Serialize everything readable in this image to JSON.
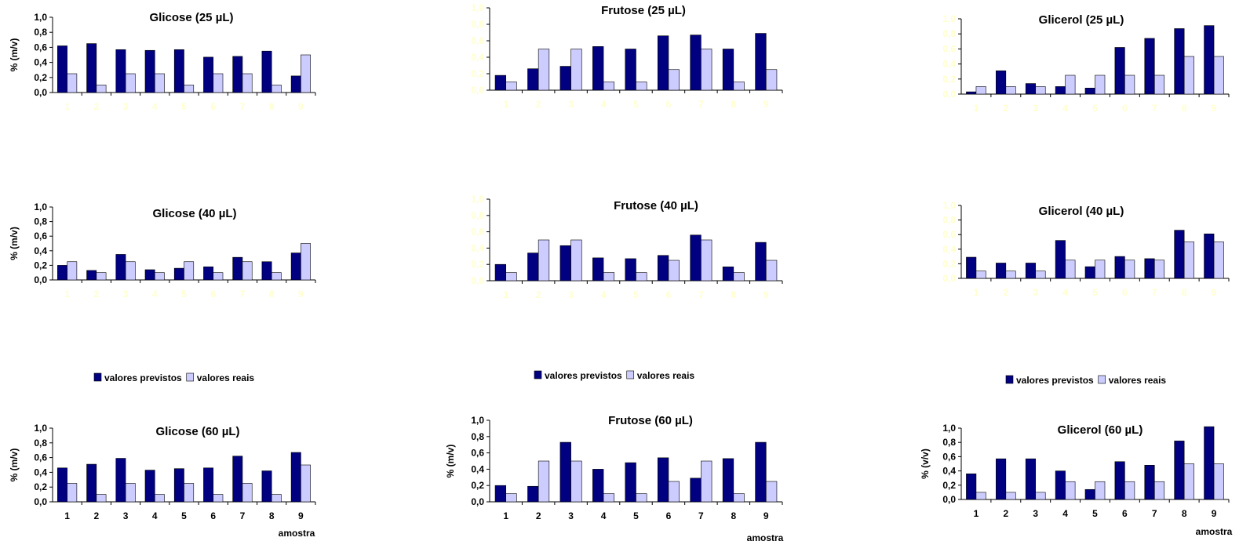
{
  "colors": {
    "previstos": "#000080",
    "reais": "#ccccff",
    "faint_tick": "#ffffcc"
  },
  "legend": {
    "previstos": "valores previstos",
    "reais": "valores reais"
  },
  "chart_data": [
    {
      "id": "glicose-25",
      "type": "bar",
      "title": "Glicose (25 µL)",
      "ylabel": "% (m/v)",
      "xlabel": "",
      "ylim": [
        0,
        1.0
      ],
      "yticks": [
        "0,0",
        "0,2",
        "0,4",
        "0,6",
        "0,8",
        "1,0"
      ],
      "categories": [
        "1",
        "2",
        "3",
        "4",
        "5",
        "6",
        "7",
        "8",
        "9"
      ],
      "series": [
        {
          "name": "valores previstos",
          "values": [
            0.62,
            0.65,
            0.57,
            0.56,
            0.57,
            0.47,
            0.48,
            0.55,
            0.22
          ]
        },
        {
          "name": "valores reais",
          "values": [
            0.25,
            0.1,
            0.25,
            0.25,
            0.1,
            0.25,
            0.25,
            0.1,
            0.5
          ]
        }
      ]
    },
    {
      "id": "frutose-25",
      "type": "bar",
      "title": "Frutose (25 µL)",
      "ylabel": "",
      "xlabel": "",
      "ylim": [
        0,
        1.0
      ],
      "yticks": [
        "0,0",
        "0,2",
        "0,4",
        "0,6",
        "0,8",
        "1,0"
      ],
      "categories": [
        "1",
        "2",
        "3",
        "4",
        "5",
        "6",
        "7",
        "8",
        "9"
      ],
      "series": [
        {
          "name": "valores previstos",
          "values": [
            0.18,
            0.26,
            0.29,
            0.53,
            0.5,
            0.66,
            0.67,
            0.5,
            0.69
          ]
        },
        {
          "name": "valores reais",
          "values": [
            0.1,
            0.5,
            0.5,
            0.1,
            0.1,
            0.25,
            0.5,
            0.1,
            0.25
          ]
        }
      ]
    },
    {
      "id": "glicerol-25",
      "type": "bar",
      "title": "Glicerol (25 µL)",
      "ylabel": "",
      "xlabel": "",
      "ylim": [
        0,
        1.0
      ],
      "yticks": [
        "0,0",
        "0,2",
        "0,4",
        "0,6",
        "0,8",
        "1,0"
      ],
      "categories": [
        "1",
        "2",
        "3",
        "4",
        "5",
        "6",
        "7",
        "8",
        "9"
      ],
      "series": [
        {
          "name": "valores previstos",
          "values": [
            0.03,
            0.31,
            0.14,
            0.1,
            0.08,
            0.62,
            0.74,
            0.87,
            0.91
          ]
        },
        {
          "name": "valores reais",
          "values": [
            0.1,
            0.1,
            0.1,
            0.25,
            0.25,
            0.25,
            0.25,
            0.5,
            0.5
          ]
        }
      ]
    },
    {
      "id": "glicose-40",
      "type": "bar",
      "title": "Glicose (40 µL)",
      "ylabel": "% (m/v)",
      "xlabel": "",
      "ylim": [
        0,
        1.0
      ],
      "yticks": [
        "0,0",
        "0,2",
        "0,4",
        "0,6",
        "0,8",
        "1,0"
      ],
      "categories": [
        "1",
        "2",
        "3",
        "4",
        "5",
        "6",
        "7",
        "8",
        "9"
      ],
      "series": [
        {
          "name": "valores previstos",
          "values": [
            0.2,
            0.13,
            0.35,
            0.14,
            0.16,
            0.18,
            0.31,
            0.25,
            0.37
          ]
        },
        {
          "name": "valores reais",
          "values": [
            0.25,
            0.1,
            0.25,
            0.1,
            0.25,
            0.1,
            0.25,
            0.1,
            0.5
          ]
        }
      ]
    },
    {
      "id": "frutose-40",
      "type": "bar",
      "title": "Frutose (40 µL)",
      "ylabel": "",
      "xlabel": "",
      "ylim": [
        0,
        1.0
      ],
      "yticks": [
        "0,0",
        "0,2",
        "0,4",
        "0,6",
        "0,8",
        "1,0"
      ],
      "categories": [
        "1",
        "2",
        "3",
        "4",
        "5",
        "6",
        "7",
        "8",
        "9"
      ],
      "series": [
        {
          "name": "valores previstos",
          "values": [
            0.2,
            0.34,
            0.43,
            0.28,
            0.27,
            0.31,
            0.56,
            0.17,
            0.47
          ]
        },
        {
          "name": "valores reais",
          "values": [
            0.1,
            0.5,
            0.5,
            0.1,
            0.1,
            0.25,
            0.5,
            0.1,
            0.25
          ]
        }
      ]
    },
    {
      "id": "glicerol-40",
      "type": "bar",
      "title": "Glicerol (40 µL)",
      "ylabel": "",
      "xlabel": "",
      "ylim": [
        0,
        1.0
      ],
      "yticks": [
        "0,0",
        "0,2",
        "0,4",
        "0,6",
        "0,8",
        "1,0"
      ],
      "categories": [
        "1",
        "2",
        "3",
        "4",
        "5",
        "6",
        "7",
        "8",
        "9"
      ],
      "series": [
        {
          "name": "valores previstos",
          "values": [
            0.29,
            0.21,
            0.21,
            0.52,
            0.16,
            0.3,
            0.27,
            0.66,
            0.61
          ]
        },
        {
          "name": "valores reais",
          "values": [
            0.1,
            0.1,
            0.1,
            0.25,
            0.25,
            0.25,
            0.25,
            0.5,
            0.5
          ]
        }
      ]
    },
    {
      "id": "glicose-60",
      "type": "bar",
      "title": "Glicose (60 µL)",
      "ylabel": "% (m/v)",
      "xlabel": "amostra",
      "ylim": [
        0,
        1.0
      ],
      "yticks": [
        "0,0",
        "0,2",
        "0,4",
        "0,6",
        "0,8",
        "1,0"
      ],
      "categories": [
        "1",
        "2",
        "3",
        "4",
        "5",
        "6",
        "7",
        "8",
        "9"
      ],
      "series": [
        {
          "name": "valores previstos",
          "values": [
            0.46,
            0.51,
            0.59,
            0.43,
            0.45,
            0.46,
            0.62,
            0.42,
            0.67
          ]
        },
        {
          "name": "valores reais",
          "values": [
            0.25,
            0.1,
            0.25,
            0.1,
            0.25,
            0.1,
            0.25,
            0.1,
            0.5
          ]
        }
      ]
    },
    {
      "id": "frutose-60",
      "type": "bar",
      "title": "Frutose (60 µL)",
      "ylabel": "% (m/v)",
      "xlabel": "amostra",
      "ylim": [
        0,
        1.0
      ],
      "yticks": [
        "0,0",
        "0,2",
        "0,4",
        "0,6",
        "0,8",
        "1,0"
      ],
      "categories": [
        "1",
        "2",
        "3",
        "4",
        "5",
        "6",
        "7",
        "8",
        "9"
      ],
      "series": [
        {
          "name": "valores previstos",
          "values": [
            0.2,
            0.19,
            0.73,
            0.4,
            0.48,
            0.54,
            0.29,
            0.53,
            0.73
          ]
        },
        {
          "name": "valores reais",
          "values": [
            0.1,
            0.5,
            0.5,
            0.1,
            0.1,
            0.25,
            0.5,
            0.1,
            0.25
          ]
        }
      ]
    },
    {
      "id": "glicerol-60",
      "type": "bar",
      "title": "Glicerol (60 µL)",
      "ylabel": "% (v/v)",
      "xlabel": "amostra",
      "ylim": [
        0,
        1.0
      ],
      "yticks": [
        "0,0",
        "0,2",
        "0,4",
        "0,6",
        "0,8",
        "1,0"
      ],
      "categories": [
        "1",
        "2",
        "3",
        "4",
        "5",
        "6",
        "7",
        "8",
        "9"
      ],
      "series": [
        {
          "name": "valores previstos",
          "values": [
            0.36,
            0.57,
            0.57,
            0.4,
            0.14,
            0.53,
            0.48,
            0.82,
            1.02
          ]
        },
        {
          "name": "valores reais",
          "values": [
            0.1,
            0.1,
            0.1,
            0.25,
            0.25,
            0.25,
            0.25,
            0.5,
            0.5
          ]
        }
      ]
    }
  ]
}
